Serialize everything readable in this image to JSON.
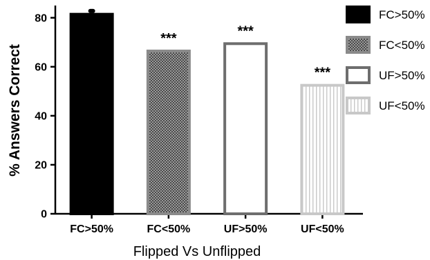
{
  "chart_data": {
    "type": "bar",
    "categories": [
      "FC>50%",
      "FC<50%",
      "UF>50%",
      "UF<50%"
    ],
    "values": [
      82,
      67,
      70,
      53
    ],
    "error": [
      0.8,
      0,
      0,
      0
    ],
    "annotations": [
      "",
      "***",
      "***",
      "***"
    ],
    "xlabel": "Flipped Vs Unflipped",
    "ylabel": "% Answers Correct",
    "ylim": [
      0,
      85
    ],
    "yticks": [
      "0",
      "20",
      "40",
      "60",
      "80"
    ],
    "ytick_values": [
      0,
      20,
      40,
      60,
      80
    ],
    "grid": false,
    "legend_position": "right",
    "legend": [
      "FC>50%",
      "FC<50%",
      "UF>50%",
      "UF<50%"
    ],
    "styles": [
      {
        "fill": "#000000",
        "stroke": "#000000",
        "pattern": "solid"
      },
      {
        "fill": "#555555",
        "stroke": "#8a8a8a",
        "pattern": "checker"
      },
      {
        "fill": "#ffffff",
        "stroke": "#6e6e6e",
        "pattern": "none"
      },
      {
        "fill": "#ffffff",
        "stroke": "#c8c8c8",
        "pattern": "vertical-lines"
      }
    ]
  }
}
